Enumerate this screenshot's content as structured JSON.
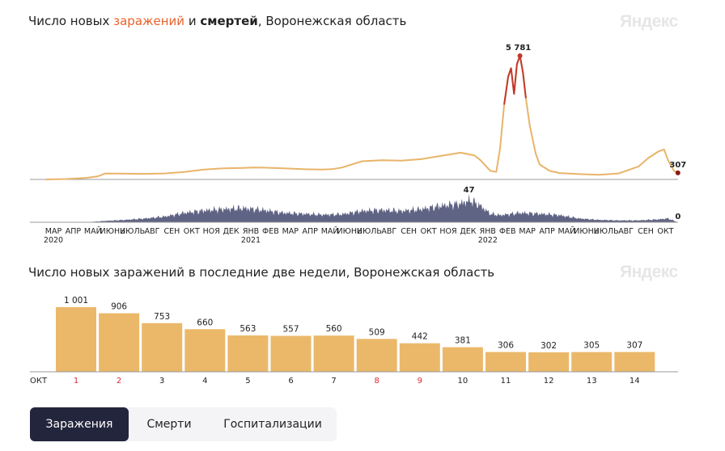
{
  "chart1": {
    "title_pre": "Число новых ",
    "title_cases": "заражений",
    "title_mid": " и ",
    "title_deaths": "смертей",
    "title_post": ", Воронежская область",
    "logo": "Яндекс"
  },
  "chart2": {
    "title": "Число новых заражений в последние две недели, Воронежская область",
    "logo": "Яндекс"
  },
  "tabs": [
    {
      "label": "Заражения",
      "active": true
    },
    {
      "label": "Смерти",
      "active": false
    },
    {
      "label": "Госпитализации",
      "active": false
    }
  ],
  "colors": {
    "cases_line": "#e8b46a",
    "cases_peak": "#c0392b",
    "deaths_area": "#4a4f73",
    "bars": "#ebb86a",
    "weekend": "#e0282e",
    "tab_active": "#23253c"
  },
  "chart_data": [
    {
      "type": "line",
      "title": "Число новых заражений и смертей, Воронежская область",
      "x_start": "2020-03",
      "x_end": "2022-10-14",
      "month_labels": [
        {
          "label": "МАР",
          "year": "2020"
        },
        {
          "label": "АПР"
        },
        {
          "label": "МАЙ"
        },
        {
          "label": "ИЮНЬ"
        },
        {
          "label": "ИЮЛЬ"
        },
        {
          "label": "АВГ"
        },
        {
          "label": "СЕН"
        },
        {
          "label": "ОКТ"
        },
        {
          "label": "НОЯ"
        },
        {
          "label": "ДЕК"
        },
        {
          "label": "ЯНВ",
          "year": "2021"
        },
        {
          "label": "ФЕВ"
        },
        {
          "label": "МАР"
        },
        {
          "label": "АПР"
        },
        {
          "label": "МАЙ"
        },
        {
          "label": "ИЮНЬ"
        },
        {
          "label": "ИЮЛЬ"
        },
        {
          "label": "АВГ"
        },
        {
          "label": "СЕН"
        },
        {
          "label": "ОКТ"
        },
        {
          "label": "НОЯ"
        },
        {
          "label": "ДЕК"
        },
        {
          "label": "ЯНВ",
          "year": "2022"
        },
        {
          "label": "ФЕВ"
        },
        {
          "label": "МАР"
        },
        {
          "label": "АПР"
        },
        {
          "label": "МАЙ"
        },
        {
          "label": "ИЮНЬ"
        },
        {
          "label": "ИЮЛЬ"
        },
        {
          "label": "АВГ"
        },
        {
          "label": "СЕН"
        },
        {
          "label": "ОКТ"
        }
      ],
      "series": [
        {
          "name": "заражения",
          "points": [
            [
              0,
              0
            ],
            [
              1,
              20
            ],
            [
              2,
              70
            ],
            [
              2.6,
              140
            ],
            [
              3,
              280
            ],
            [
              4,
              270
            ],
            [
              5,
              260
            ],
            [
              6,
              280
            ],
            [
              7,
              350
            ],
            [
              8,
              460
            ],
            [
              9,
              520
            ],
            [
              10,
              540
            ],
            [
              10.5,
              560
            ],
            [
              11,
              550
            ],
            [
              12,
              520
            ],
            [
              13,
              480
            ],
            [
              14,
              460
            ],
            [
              14.5,
              480
            ],
            [
              15,
              560
            ],
            [
              16,
              850
            ],
            [
              17,
              900
            ],
            [
              18,
              880
            ],
            [
              19,
              950
            ],
            [
              20,
              1100
            ],
            [
              21,
              1250
            ],
            [
              21.7,
              1120
            ],
            [
              22,
              900
            ],
            [
              22.5,
              400
            ],
            [
              22.8,
              350
            ],
            [
              23.0,
              1500
            ],
            [
              23.2,
              3500
            ],
            [
              23.4,
              4800
            ],
            [
              23.55,
              5200
            ],
            [
              23.7,
              4000
            ],
            [
              23.85,
              5400
            ],
            [
              24.0,
              5781
            ],
            [
              24.15,
              5000
            ],
            [
              24.3,
              3800
            ],
            [
              24.5,
              2500
            ],
            [
              24.8,
              1200
            ],
            [
              25,
              700
            ],
            [
              25.5,
              400
            ],
            [
              26,
              300
            ],
            [
              27,
              250
            ],
            [
              28,
              220
            ],
            [
              29,
              280
            ],
            [
              30,
              600
            ],
            [
              30.5,
              1000
            ],
            [
              31,
              1300
            ],
            [
              31.3,
              1400
            ],
            [
              31.5,
              900
            ],
            [
              31.8,
              400
            ],
            [
              32.0,
              307
            ]
          ],
          "peak": {
            "x": 24.0,
            "value": 5781,
            "label": "5 781"
          },
          "last": {
            "value": 307,
            "label": "307"
          }
        },
        {
          "name": "смерти",
          "points": [
            [
              0,
              0
            ],
            [
              2,
              0
            ],
            [
              3,
              3
            ],
            [
              4,
              5
            ],
            [
              5,
              8
            ],
            [
              6,
              12
            ],
            [
              7,
              20
            ],
            [
              8,
              25
            ],
            [
              9,
              28
            ],
            [
              10,
              30
            ],
            [
              11,
              26
            ],
            [
              12,
              20
            ],
            [
              13,
              18
            ],
            [
              14,
              16
            ],
            [
              15,
              17
            ],
            [
              16,
              24
            ],
            [
              17,
              26
            ],
            [
              18,
              24
            ],
            [
              19,
              28
            ],
            [
              20,
              35
            ],
            [
              21,
              40
            ],
            [
              21.5,
              47
            ],
            [
              22,
              35
            ],
            [
              22.5,
              18
            ],
            [
              23,
              15
            ],
            [
              24,
              20
            ],
            [
              25,
              18
            ],
            [
              26,
              15
            ],
            [
              27,
              8
            ],
            [
              28,
              5
            ],
            [
              29,
              4
            ],
            [
              30,
              4
            ],
            [
              31,
              6
            ],
            [
              31.5,
              8
            ],
            [
              32,
              0
            ]
          ],
          "peak": {
            "x": 21.5,
            "value": 47,
            "label": "47"
          },
          "last": {
            "value": 0,
            "label": "0"
          }
        }
      ]
    },
    {
      "type": "bar",
      "title": "Число новых заражений в последние две недели, Воронежская область",
      "month": "ОКТ",
      "categories": [
        "1",
        "2",
        "3",
        "4",
        "5",
        "6",
        "7",
        "8",
        "9",
        "10",
        "11",
        "12",
        "13",
        "14"
      ],
      "weekend": [
        true,
        true,
        false,
        false,
        false,
        false,
        false,
        true,
        true,
        false,
        false,
        false,
        false,
        false
      ],
      "values": [
        1001,
        906,
        753,
        660,
        563,
        557,
        560,
        509,
        442,
        381,
        306,
        302,
        305,
        307
      ],
      "value_labels": [
        "1 001",
        "906",
        "753",
        "660",
        "563",
        "557",
        "560",
        "509",
        "442",
        "381",
        "306",
        "302",
        "305",
        "307"
      ],
      "ylim": [
        0,
        1001
      ]
    }
  ]
}
